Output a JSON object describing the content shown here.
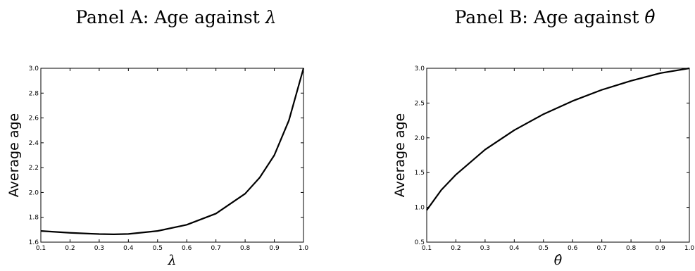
{
  "chart_data": [
    {
      "type": "line",
      "title": "Panel A: Age against ",
      "title_symbol": "λ",
      "xlabel": "λ",
      "ylabel": "Average age",
      "xlim": [
        0.1,
        1.0
      ],
      "ylim": [
        1.6,
        3.0
      ],
      "grid": false,
      "xticks": [
        "0.1",
        "0.2",
        "0.3",
        "0.4",
        "0.5",
        "0.6",
        "0.7",
        "0.8",
        "0.9",
        "1.0"
      ],
      "yticks": [
        "1.6",
        "1.8",
        "2.0",
        "2.2",
        "2.4",
        "2.6",
        "2.8",
        "3.0"
      ],
      "series": [
        {
          "color": "#000000",
          "x": [
            0.1,
            0.2,
            0.3,
            0.35,
            0.4,
            0.5,
            0.6,
            0.7,
            0.8,
            0.85,
            0.9,
            0.95,
            1.0
          ],
          "y": [
            1.69,
            1.675,
            1.665,
            1.663,
            1.666,
            1.69,
            1.74,
            1.83,
            1.99,
            2.12,
            2.3,
            2.58,
            3.0
          ]
        }
      ]
    },
    {
      "type": "line",
      "title": "Panel B: Age against ",
      "title_symbol": "θ̂",
      "xlabel": "θ̂",
      "ylabel": "Average age",
      "xlim": [
        0.1,
        1.0
      ],
      "ylim": [
        0.5,
        3.0
      ],
      "grid": false,
      "xticks": [
        "0.1",
        "0.2",
        "0.3",
        "0.4",
        "0.5",
        "0.6",
        "0.7",
        "0.8",
        "0.9",
        "1.0"
      ],
      "yticks": [
        "0.5",
        "1.0",
        "1.5",
        "2.0",
        "2.5",
        "3.0"
      ],
      "series": [
        {
          "color": "#000000",
          "x": [
            0.1,
            0.15,
            0.2,
            0.3,
            0.4,
            0.5,
            0.6,
            0.7,
            0.8,
            0.9,
            1.0
          ],
          "y": [
            0.96,
            1.25,
            1.47,
            1.83,
            2.11,
            2.34,
            2.53,
            2.69,
            2.82,
            2.93,
            3.0
          ]
        }
      ]
    }
  ]
}
